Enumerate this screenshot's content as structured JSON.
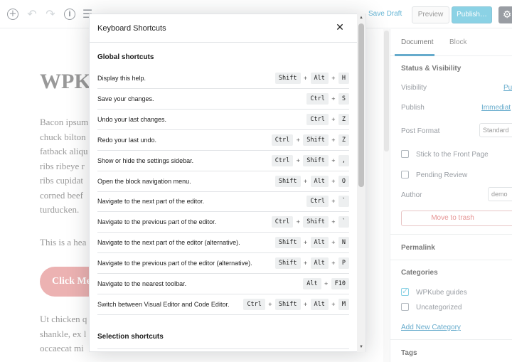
{
  "toolbar": {
    "save_draft": "Save Draft",
    "preview": "Preview",
    "publish": "Publish…"
  },
  "editor": {
    "title": "WPK",
    "paragraph_lines": [
      "Bacon ipsum",
      "chuck bilton",
      "fatback aliqu",
      "ribs ribeye r",
      "ribs cupidat",
      "corned beef",
      "turducken."
    ],
    "heading": "This is a hea",
    "cta_label": "Click Me",
    "paragraph2_lines": [
      "Ut chicken q",
      "shankle, ex l",
      "occaecat mi"
    ]
  },
  "sidebar": {
    "tabs": [
      "Document",
      "Block"
    ],
    "status_visibility": "Status & Visibility",
    "visibility_label": "Visibility",
    "visibility_value": "Pub",
    "publish_label": "Publish",
    "publish_value": "Immediat",
    "post_format_label": "Post Format",
    "post_format_value": "Standard",
    "stick_front": "Stick to the Front Page",
    "pending_review": "Pending Review",
    "author_label": "Author",
    "author_value": "demo",
    "trash": "Move to trash",
    "permalink": "Permalink",
    "categories": "Categories",
    "category_items": [
      {
        "label": "WPKube guides",
        "checked": true
      },
      {
        "label": "Uncategorized",
        "checked": false
      }
    ],
    "add_category": "Add New Category",
    "tags": "Tags"
  },
  "modal": {
    "title": "Keyboard Shortcuts",
    "global_title": "Global shortcuts",
    "selection_title": "Selection shortcuts",
    "shortcuts": [
      {
        "desc": "Display this help.",
        "keys": [
          "Shift",
          "Alt",
          "H"
        ]
      },
      {
        "desc": "Save your changes.",
        "keys": [
          "Ctrl",
          "S"
        ]
      },
      {
        "desc": "Undo your last changes.",
        "keys": [
          "Ctrl",
          "Z"
        ]
      },
      {
        "desc": "Redo your last undo.",
        "keys": [
          "Ctrl",
          "Shift",
          "Z"
        ]
      },
      {
        "desc": "Show or hide the settings sidebar.",
        "keys": [
          "Ctrl",
          "Shift",
          ","
        ]
      },
      {
        "desc": "Open the block navigation menu.",
        "keys": [
          "Shift",
          "Alt",
          "O"
        ]
      },
      {
        "desc": "Navigate to the next part of the editor.",
        "keys": [
          "Ctrl",
          "`"
        ]
      },
      {
        "desc": "Navigate to the previous part of the editor.",
        "keys": [
          "Ctrl",
          "Shift",
          "`"
        ]
      },
      {
        "desc": "Navigate to the next part of the editor (alternative).",
        "keys": [
          "Shift",
          "Alt",
          "N"
        ]
      },
      {
        "desc": "Navigate to the previous part of the editor (alternative).",
        "keys": [
          "Shift",
          "Alt",
          "P"
        ]
      },
      {
        "desc": "Navigate to the nearest toolbar.",
        "keys": [
          "Alt",
          "F10"
        ]
      },
      {
        "desc": "Switch between Visual Editor and Code Editor.",
        "keys": [
          "Ctrl",
          "Shift",
          "Alt",
          "M"
        ]
      }
    ]
  }
}
